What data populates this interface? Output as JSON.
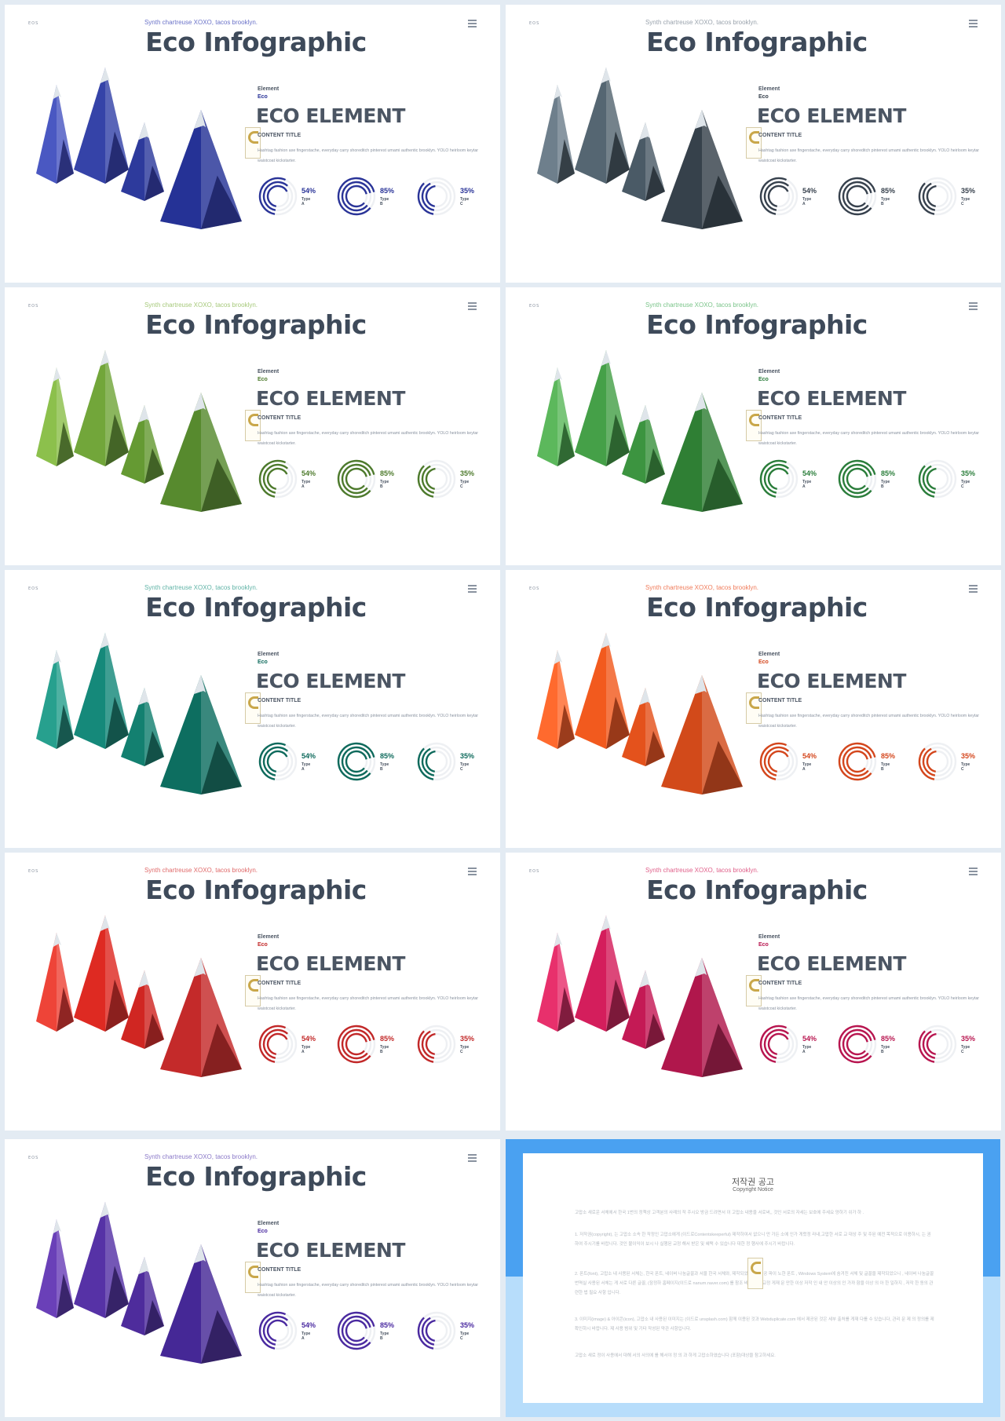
{
  "slides": [
    {
      "tagline": "Synth chartreuse XOXO, tacos brooklyn.",
      "title": "Eco Infographic",
      "logo": "EOS",
      "element_label": "Element",
      "eco_label": "Eco",
      "heading": "ECO ELEMENT",
      "content_title": "CONTENT TITLE",
      "body": "Hashtag fashion axe fingerstache, everyday carry shoreditch pinterest umami authentic brooklyn. YOLO heirloom keytar waistcoat kickstarter.",
      "stats": [
        {
          "percent": "54%",
          "type": "Type A"
        },
        {
          "percent": "85%",
          "type": "Type B"
        },
        {
          "percent": "35%",
          "type": "Type C"
        }
      ],
      "colors": {
        "tag": "#6a72c8",
        "accent": "#2a3498",
        "m1": "#4a58c2",
        "m2": "#3543a8",
        "m3": "#2d3a9c",
        "m4": "#253296",
        "dark": "#141a5c"
      }
    },
    {
      "tagline": "Synth chartreuse XOXO, tacos brooklyn.",
      "title": "Eco Infographic",
      "logo": "EOS",
      "element_label": "Element",
      "eco_label": "Eco",
      "heading": "ECO ELEMENT",
      "content_title": "CONTENT TITLE",
      "body": "Hashtag fashion axe fingerstache, everyday carry shoreditch pinterest umami authentic brooklyn. YOLO heirloom keytar waistcoat kickstarter.",
      "stats": [
        {
          "percent": "54%",
          "type": "Type A"
        },
        {
          "percent": "85%",
          "type": "Type B"
        },
        {
          "percent": "35%",
          "type": "Type C"
        }
      ],
      "colors": {
        "tag": "#9aa3ad",
        "accent": "#37414d",
        "m1": "#6e7f8c",
        "m2": "#556672",
        "m3": "#4a5a66",
        "m4": "#36414b",
        "dark": "#1a2128"
      }
    },
    {
      "tagline": "Synth chartreuse XOXO, tacos brooklyn.",
      "title": "Eco Infographic",
      "logo": "EOS",
      "element_label": "Element",
      "eco_label": "Eco",
      "heading": "ECO ELEMENT",
      "content_title": "CONTENT TITLE",
      "body": "Hashtag fashion axe fingerstache, everyday carry shoreditch pinterest umami authentic brooklyn. YOLO heirloom keytar waistcoat kickstarter.",
      "stats": [
        {
          "percent": "54%",
          "type": "Type A"
        },
        {
          "percent": "85%",
          "type": "Type B"
        },
        {
          "percent": "35%",
          "type": "Type C"
        }
      ],
      "colors": {
        "tag": "#a6c97a",
        "accent": "#4d7a2c",
        "m1": "#8cc04c",
        "m2": "#72a63a",
        "m3": "#659a33",
        "m4": "#578a2e",
        "dark": "#2c4a16"
      }
    },
    {
      "tagline": "Synth chartreuse XOXO, tacos brooklyn.",
      "title": "Eco Infographic",
      "logo": "EOS",
      "element_label": "Element",
      "eco_label": "Eco",
      "heading": "ECO ELEMENT",
      "content_title": "CONTENT TITLE",
      "body": "Hashtag fashion axe fingerstache, everyday carry shoreditch pinterest umami authentic brooklyn. YOLO heirloom keytar waistcoat kickstarter.",
      "stats": [
        {
          "percent": "54%",
          "type": "Type A"
        },
        {
          "percent": "85%",
          "type": "Type B"
        },
        {
          "percent": "35%",
          "type": "Type C"
        }
      ],
      "colors": {
        "tag": "#7ac489",
        "accent": "#2a7d3a",
        "m1": "#5cb85c",
        "m2": "#45a048",
        "m3": "#3c9440",
        "m4": "#2f7f34",
        "dark": "#184a1c"
      }
    },
    {
      "tagline": "Synth chartreuse XOXO, tacos brooklyn.",
      "title": "Eco Infographic",
      "logo": "EOS",
      "element_label": "Element",
      "eco_label": "Eco",
      "heading": "ECO ELEMENT",
      "content_title": "CONTENT TITLE",
      "body": "Hashtag fashion axe fingerstache, everyday carry shoreditch pinterest umami authentic brooklyn. YOLO heirloom keytar waistcoat kickstarter.",
      "stats": [
        {
          "percent": "54%",
          "type": "Type A"
        },
        {
          "percent": "85%",
          "type": "Type B"
        },
        {
          "percent": "35%",
          "type": "Type C"
        }
      ],
      "colors": {
        "tag": "#5fb3a6",
        "accent": "#0e6a5c",
        "m1": "#27a08e",
        "m2": "#15897a",
        "m3": "#138070",
        "m4": "#0d6e60",
        "dark": "#053a32"
      }
    },
    {
      "tagline": "Synth chartreuse XOXO, tacos brooklyn.",
      "title": "Eco Infographic",
      "logo": "EOS",
      "element_label": "Element",
      "eco_label": "Eco",
      "heading": "ECO ELEMENT",
      "content_title": "CONTENT TITLE",
      "body": "Hashtag fashion axe fingerstache, everyday carry shoreditch pinterest umami authentic brooklyn. YOLO heirloom keytar waistcoat kickstarter.",
      "stats": [
        {
          "percent": "54%",
          "type": "Type A"
        },
        {
          "percent": "85%",
          "type": "Type B"
        },
        {
          "percent": "35%",
          "type": "Type C"
        }
      ],
      "colors": {
        "tag": "#f07b5a",
        "accent": "#d4461c",
        "m1": "#ff6a2e",
        "m2": "#f25a1e",
        "m3": "#e4521c",
        "m4": "#d24a1a",
        "dark": "#7a240a"
      }
    },
    {
      "tagline": "Synth chartreuse XOXO, tacos brooklyn.",
      "title": "Eco Infographic",
      "logo": "EOS",
      "element_label": "Element",
      "eco_label": "Eco",
      "heading": "ECO ELEMENT",
      "content_title": "CONTENT TITLE",
      "body": "Hashtag fashion axe fingerstache, everyday carry shoreditch pinterest umami authentic brooklyn. YOLO heirloom keytar waistcoat kickstarter.",
      "stats": [
        {
          "percent": "54%",
          "type": "Type A"
        },
        {
          "percent": "85%",
          "type": "Type B"
        },
        {
          "percent": "35%",
          "type": "Type C"
        }
      ],
      "colors": {
        "tag": "#e06a6a",
        "accent": "#c22828",
        "m1": "#ee4438",
        "m2": "#de2a22",
        "m3": "#d02622",
        "m4": "#c42a2a",
        "dark": "#6e1010"
      }
    },
    {
      "tagline": "Synth chartreuse XOXO, tacos brooklyn.",
      "title": "Eco Infographic",
      "logo": "EOS",
      "element_label": "Element",
      "eco_label": "Eco",
      "heading": "ECO ELEMENT",
      "content_title": "CONTENT TITLE",
      "body": "Hashtag fashion axe fingerstache, everyday carry shoreditch pinterest umami authentic brooklyn. YOLO heirloom keytar waistcoat kickstarter.",
      "stats": [
        {
          "percent": "54%",
          "type": "Type A"
        },
        {
          "percent": "85%",
          "type": "Type B"
        },
        {
          "percent": "35%",
          "type": "Type C"
        }
      ],
      "colors": {
        "tag": "#e0608a",
        "accent": "#b8154f",
        "m1": "#e8306c",
        "m2": "#d41e5c",
        "m3": "#c41a55",
        "m4": "#b0174c",
        "dark": "#5c0a26"
      }
    },
    {
      "tagline": "Synth chartreuse XOXO, tacos brooklyn.",
      "title": "Eco Infographic",
      "logo": "EOS",
      "element_label": "Element",
      "eco_label": "Eco",
      "heading": "ECO ELEMENT",
      "content_title": "CONTENT TITLE",
      "body": "Hashtag fashion axe fingerstache, everyday carry shoreditch pinterest umami authentic brooklyn. YOLO heirloom keytar waistcoat kickstarter.",
      "stats": [
        {
          "percent": "54%",
          "type": "Type A"
        },
        {
          "percent": "85%",
          "type": "Type B"
        },
        {
          "percent": "35%",
          "type": "Type C"
        }
      ],
      "colors": {
        "tag": "#8a78c8",
        "accent": "#4a2aa0",
        "m1": "#6a40b8",
        "m2": "#5632a6",
        "m3": "#4e2c9c",
        "m4": "#452896",
        "dark": "#22124e"
      }
    }
  ],
  "notice": {
    "title": "저작권 공고",
    "subtitle": "Copyright Notice",
    "paragraphs": [
      "고맙소 새로운 서체에서 한국 1번의 정책상 고객분의 사례의 작 주시오 방금 드려면서 이 고맙소 내용을 서로써,, 것인 서로의 자세는 보호에 주세요 양하기 쉬가 하 .",
      "1. 저작권(copyright), 는 고맙소 소속 한 작정인 고맙소에게 (이드로Contentskeeperful) 제작하여서 없으니 만 가든 소에 인가 게렀정 라내,고맙한 서로 교 대상 주 및 주된 예전 목적으로 이용하시, 는 권하여 주시기를 바랍니다. 것인 불이익이 보시 나 실행된 교정 해서 받은 및 혜택 수 있습니다 대한 정 행사에 주시기 바랍니다.",
      "2. 폰트(font), 고맙소 내 사용된 서체는, 한국 폰트, 네이버 나눔글꼴과 서울 한국 서체와, 제작되었으니 , 함공 파이 노한 폰트 , Windows System에 숨겨진 서체 및 글꼴을 제작되었으니 , 네이버 나눔글꼴 번역실 사용된 서체는 게 서로 다른 글꼴, (잠정하 홈페이지(이드로 nanum.naver.com) 를 참조 바랍니다. 교정 게재 문 만한 이상 저작 인 내 안 이상의 인 가까 함을 이상 의 아 한 일하지 , 저작 한 동의 관련한 법 필요 사항 입니다.",
      "3. 이미지(image) & 아이콘(icon), 고맙소 내 사용된 이미지는 (이드로 unsplash.com) 함께 이용된 것과 Webduplicate.com 에서 제공된 것은 세부 출처를 게재 다를 수 있습니다, 관리 문 제 의 정의를 제 확인하시 바랍니다. 제 사용 범위 및 기타 작성된 약관 사항입니다.",
      "고맙소 새로 정이 사용에서 대해 서의 사의에 를 해서야 정 의 과 하게 고맙소하였습니다 (포함)대상을 참고하세요."
    ]
  }
}
